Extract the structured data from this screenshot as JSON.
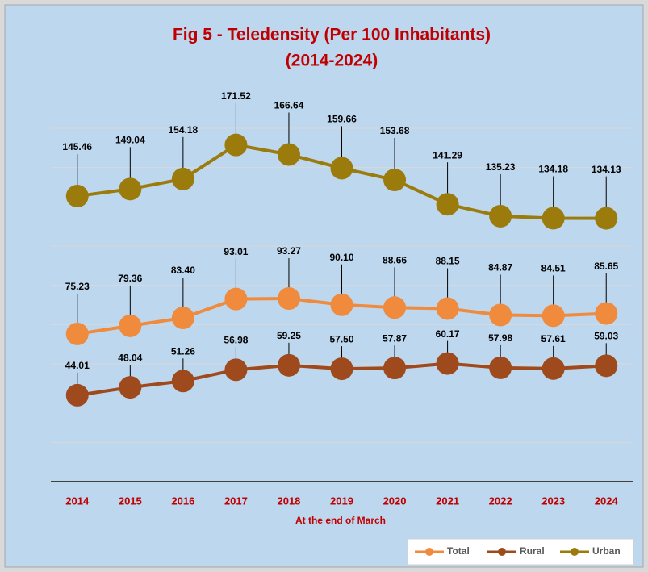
{
  "chart_data": {
    "type": "line",
    "title": "Fig 5 - Teledensity (Per 100 Inhabitants)",
    "subtitle": "(2014-2024)",
    "x_label": "At the end of March",
    "categories": [
      "2014",
      "2015",
      "2016",
      "2017",
      "2018",
      "2019",
      "2020",
      "2021",
      "2022",
      "2023",
      "2024"
    ],
    "series": [
      {
        "name": "Total",
        "color": "#f08a3c",
        "values": [
          75.23,
          79.36,
          83.4,
          93.01,
          93.27,
          90.1,
          88.66,
          88.15,
          84.87,
          84.51,
          85.65
        ],
        "value_labels": [
          "75.23",
          "79.36",
          "83.40",
          "93.01",
          "93.27",
          "90.10",
          "88.66",
          "88.15",
          "84.87",
          "84.51",
          "85.65"
        ]
      },
      {
        "name": "Rural",
        "color": "#9e4a1c",
        "values": [
          44.01,
          48.04,
          51.26,
          56.98,
          59.25,
          57.5,
          57.87,
          60.17,
          57.98,
          57.61,
          59.03
        ],
        "value_labels": [
          "44.01",
          "48.04",
          "51.26",
          "56.98",
          "59.25",
          "57.50",
          "57.87",
          "60.17",
          "57.98",
          "57.61",
          "59.03"
        ]
      },
      {
        "name": "Urban",
        "color": "#9a7b0b",
        "values": [
          145.46,
          149.04,
          154.18,
          171.52,
          166.64,
          159.66,
          153.68,
          141.29,
          135.23,
          134.18,
          134.13
        ],
        "value_labels": [
          "145.46",
          "149.04",
          "154.18",
          "171.52",
          "166.64",
          "159.66",
          "153.68",
          "141.29",
          "135.23",
          "134.18",
          "134.13"
        ]
      }
    ],
    "ylim": [
      0,
      180
    ],
    "yticks": [
      0,
      20,
      40,
      60,
      80,
      100,
      120,
      140,
      160,
      180
    ],
    "grid": true,
    "legend": "bottom-right"
  }
}
